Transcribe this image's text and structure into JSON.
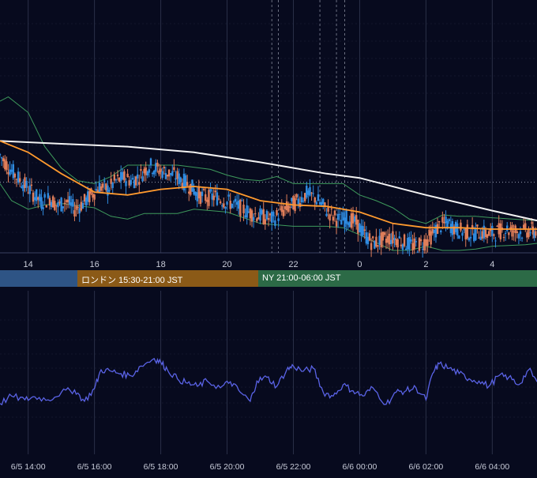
{
  "colors": {
    "background": "#070a1e",
    "grid": "#2a3048",
    "up_candle": "#2f8be0",
    "down_candle": "#e07e5a",
    "ma_fast": "#ff9a2e",
    "ma_slow": "#f2f2f2",
    "bollinger": "#3e9a5c",
    "oscillator": "#5a63e6",
    "axis_text": "#c7cbd8"
  },
  "sessions": [
    {
      "label": "",
      "color": "#2e5485"
    },
    {
      "label": "ロンドン 15:30-21:00 JST",
      "color": "#8b5a17"
    },
    {
      "label": "NY 21:00-06:00 JST",
      "color": "#2c6a46"
    }
  ],
  "chart_data": [
    {
      "type": "candlestick",
      "description_axis": "price chart with 5-minute candles, bollinger bands and moving averages",
      "x_tick_labels": [
        "14",
        "16",
        "18",
        "20",
        "22",
        "0",
        "2",
        "4"
      ],
      "x_tick_hours": [
        14,
        16,
        18,
        20,
        22,
        24,
        26,
        28
      ],
      "x_range_hours": [
        13.15,
        29.35
      ],
      "y_range": [
        0,
        100
      ],
      "y_axis_labels_visible": false,
      "grid": true,
      "reference_level": 43,
      "event_marker_hours": [
        21.35,
        21.55,
        22.8,
        23.3,
        23.55
      ],
      "ma_slow": [
        [
          13.15,
          72
        ],
        [
          15,
          70
        ],
        [
          17,
          68
        ],
        [
          19,
          64
        ],
        [
          21,
          57
        ],
        [
          23,
          49
        ],
        [
          24,
          46
        ],
        [
          26,
          34
        ],
        [
          28,
          23
        ],
        [
          29.35,
          16
        ]
      ],
      "ma_fast": [
        [
          13.15,
          72
        ],
        [
          14,
          64
        ],
        [
          15,
          49
        ],
        [
          16,
          36
        ],
        [
          17,
          34
        ],
        [
          18,
          38
        ],
        [
          19,
          40
        ],
        [
          20,
          38
        ],
        [
          21,
          30
        ],
        [
          22,
          27
        ],
        [
          23,
          26
        ],
        [
          24,
          22
        ],
        [
          25,
          14
        ],
        [
          26,
          11
        ],
        [
          27,
          11
        ],
        [
          28,
          10
        ],
        [
          29.35,
          10
        ]
      ],
      "bb_upper": [
        [
          13.15,
          100
        ],
        [
          13.4,
          103
        ],
        [
          14,
          92
        ],
        [
          14.5,
          68
        ],
        [
          15,
          53
        ],
        [
          15.5,
          44
        ],
        [
          16,
          42
        ],
        [
          16.5,
          47
        ],
        [
          17,
          55
        ],
        [
          17.5,
          55
        ],
        [
          18.5,
          55
        ],
        [
          19.5,
          52
        ],
        [
          20,
          48
        ],
        [
          20.5,
          45
        ],
        [
          21,
          44
        ],
        [
          21.5,
          47
        ],
        [
          22,
          42
        ],
        [
          23,
          42
        ],
        [
          23.5,
          42
        ],
        [
          24,
          34
        ],
        [
          24.5,
          30
        ],
        [
          25,
          25
        ],
        [
          25.5,
          17
        ],
        [
          26,
          14
        ],
        [
          26.5,
          20
        ],
        [
          27,
          19
        ],
        [
          27.5,
          19
        ],
        [
          28,
          18
        ],
        [
          29.35,
          16
        ]
      ],
      "bb_lower": [
        [
          13.15,
          42
        ],
        [
          13.5,
          30
        ],
        [
          14,
          24
        ],
        [
          14.5,
          27
        ],
        [
          15,
          28
        ],
        [
          16,
          25
        ],
        [
          16.5,
          19
        ],
        [
          17,
          17
        ],
        [
          17.5,
          21
        ],
        [
          18.5,
          21
        ],
        [
          19,
          24
        ],
        [
          20,
          22
        ],
        [
          20.5,
          18
        ],
        [
          21,
          14
        ],
        [
          21.5,
          13
        ],
        [
          22,
          12
        ],
        [
          23,
          12
        ],
        [
          23.5,
          11
        ],
        [
          24,
          6
        ],
        [
          25,
          -5
        ],
        [
          25.5,
          -5
        ],
        [
          26,
          -2
        ],
        [
          26.5,
          -5
        ],
        [
          27,
          -5
        ],
        [
          27.5,
          -4
        ],
        [
          28,
          -2
        ],
        [
          29,
          -1
        ],
        [
          29.35,
          0
        ]
      ],
      "candles": [
        {
          "h": 13.15,
          "c": 62
        },
        {
          "h": 13.4,
          "c": 54
        },
        {
          "h": 13.65,
          "c": 47
        },
        {
          "h": 13.9,
          "c": 41
        },
        {
          "h": 14.15,
          "c": 35
        },
        {
          "h": 14.4,
          "c": 29
        },
        {
          "h": 14.65,
          "c": 32
        },
        {
          "h": 14.9,
          "c": 26
        },
        {
          "h": 15.15,
          "c": 30
        },
        {
          "h": 15.4,
          "c": 24
        },
        {
          "h": 15.65,
          "c": 28
        },
        {
          "h": 15.9,
          "c": 34
        },
        {
          "h": 16.15,
          "c": 40
        },
        {
          "h": 16.4,
          "c": 38
        },
        {
          "h": 16.65,
          "c": 44
        },
        {
          "h": 16.9,
          "c": 46
        },
        {
          "h": 17.15,
          "c": 44
        },
        {
          "h": 17.4,
          "c": 48
        },
        {
          "h": 17.65,
          "c": 55
        },
        {
          "h": 17.9,
          "c": 52
        },
        {
          "h": 18.15,
          "c": 50
        },
        {
          "h": 18.4,
          "c": 48
        },
        {
          "h": 18.65,
          "c": 44
        },
        {
          "h": 18.9,
          "c": 40
        },
        {
          "h": 19.15,
          "c": 34
        },
        {
          "h": 19.4,
          "c": 32
        },
        {
          "h": 19.65,
          "c": 33
        },
        {
          "h": 19.9,
          "c": 30
        },
        {
          "h": 20.15,
          "c": 28
        },
        {
          "h": 20.4,
          "c": 25
        },
        {
          "h": 20.65,
          "c": 22
        },
        {
          "h": 20.9,
          "c": 20
        },
        {
          "h": 21.15,
          "c": 18
        },
        {
          "h": 21.4,
          "c": 17
        },
        {
          "h": 21.65,
          "c": 22
        },
        {
          "h": 21.9,
          "c": 26
        },
        {
          "h": 22.15,
          "c": 30
        },
        {
          "h": 22.4,
          "c": 35
        },
        {
          "h": 22.65,
          "c": 32
        },
        {
          "h": 22.9,
          "c": 26
        },
        {
          "h": 23.15,
          "c": 20
        },
        {
          "h": 23.4,
          "c": 16
        },
        {
          "h": 23.65,
          "c": 18
        },
        {
          "h": 23.9,
          "c": 14
        },
        {
          "h": 24.15,
          "c": 6
        },
        {
          "h": 24.4,
          "c": 0
        },
        {
          "h": 24.65,
          "c": 2
        },
        {
          "h": 24.9,
          "c": 4
        },
        {
          "h": 25.15,
          "c": 3
        },
        {
          "h": 25.4,
          "c": 0
        },
        {
          "h": 25.65,
          "c": -2
        },
        {
          "h": 25.9,
          "c": 0
        },
        {
          "h": 26.15,
          "c": 5
        },
        {
          "h": 26.4,
          "c": 12
        },
        {
          "h": 26.65,
          "c": 14
        },
        {
          "h": 26.9,
          "c": 10
        },
        {
          "h": 27.15,
          "c": 8
        },
        {
          "h": 27.4,
          "c": 7
        },
        {
          "h": 27.65,
          "c": 8
        },
        {
          "h": 27.9,
          "c": 6
        },
        {
          "h": 28.15,
          "c": 8
        },
        {
          "h": 28.4,
          "c": 10
        },
        {
          "h": 28.65,
          "c": 9
        },
        {
          "h": 28.9,
          "c": 8
        },
        {
          "h": 29.15,
          "c": 9
        },
        {
          "h": 29.35,
          "c": 8
        }
      ]
    },
    {
      "type": "line",
      "description_axis": "oscillator sub-panel",
      "x_tick_labels": [
        "6/5 14:00",
        "6/5 16:00",
        "6/5 18:00",
        "6/5 20:00",
        "6/5 22:00",
        "6/6 00:00",
        "6/6 02:00",
        "6/6 04:00"
      ],
      "x_tick_hours": [
        14,
        16,
        18,
        20,
        22,
        24,
        26,
        28
      ],
      "x_range_hours": [
        13.15,
        29.35
      ],
      "y_range": [
        0,
        100
      ],
      "y_axis_labels_visible": false,
      "grid": true,
      "series": [
        {
          "x": [
            13.15,
            13.5,
            13.9,
            14.2,
            14.6,
            15.0,
            15.4,
            15.7,
            16.0,
            16.2,
            16.5,
            16.8,
            17.1,
            17.4,
            17.8,
            18.0,
            18.2,
            18.5,
            18.8,
            19.1,
            19.4,
            19.8,
            20.1,
            20.4,
            20.7,
            20.9,
            21.2,
            21.5,
            21.8,
            22.0,
            22.3,
            22.6,
            22.9,
            23.2,
            23.5,
            23.8,
            24.1,
            24.4,
            24.8,
            25.1,
            25.4,
            25.7,
            26.0,
            26.2,
            26.4,
            26.7,
            27.0,
            27.3,
            27.6,
            27.9,
            28.2,
            28.5,
            28.8,
            29.1,
            29.35
          ],
          "y": [
            15,
            25,
            20,
            24,
            20,
            30,
            33,
            18,
            35,
            60,
            58,
            55,
            52,
            65,
            75,
            70,
            60,
            48,
            42,
            38,
            45,
            36,
            44,
            30,
            18,
            45,
            50,
            38,
            60,
            65,
            58,
            62,
            30,
            25,
            40,
            32,
            25,
            36,
            14,
            30,
            32,
            36,
            20,
            55,
            68,
            62,
            55,
            48,
            45,
            38,
            52,
            50,
            40,
            60,
            44
          ]
        }
      ]
    }
  ]
}
